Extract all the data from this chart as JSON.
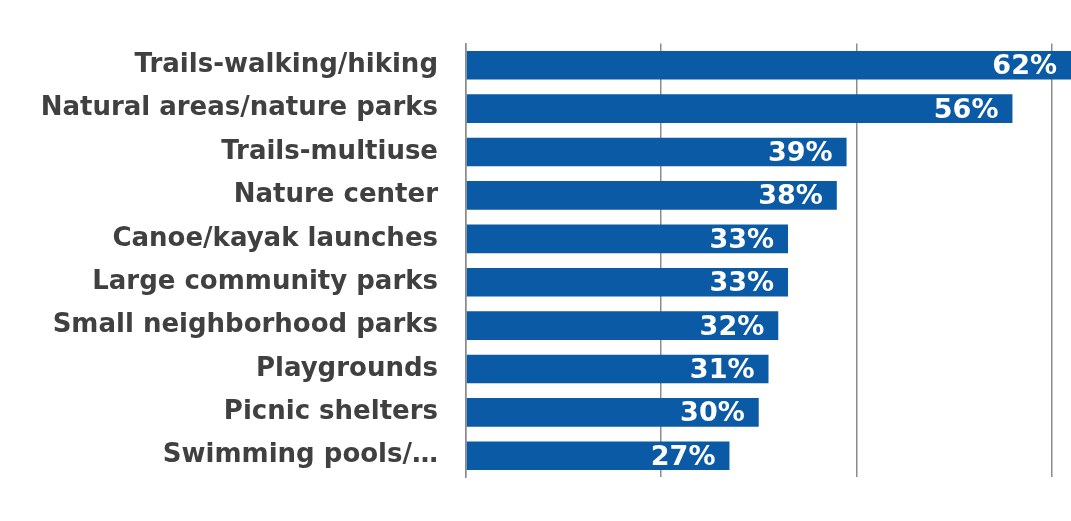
{
  "chart_data": {
    "type": "bar",
    "orientation": "horizontal",
    "categories": [
      "Trails-walking/hiking",
      "Natural areas/nature parks",
      "Trails-multiuse",
      "Nature center",
      "Canoe/kayak launches",
      "Large community parks",
      "Small neighborhood parks",
      "Playgrounds",
      "Picnic shelters",
      "Swimming pools/…"
    ],
    "values": [
      62,
      56,
      39,
      38,
      33,
      33,
      32,
      31,
      30,
      27
    ],
    "value_labels": [
      "62%",
      "56%",
      "39%",
      "38%",
      "33%",
      "33%",
      "32%",
      "31%",
      "30%",
      "27%"
    ],
    "color": "#0b5aa5",
    "xlim": [
      0,
      62
    ],
    "xticks": [
      {
        "value": 0,
        "label": null
      },
      {
        "value": 20,
        "label": null
      },
      {
        "value": 40,
        "label": null
      },
      {
        "value": 60,
        "label": null
      }
    ],
    "grid": "x",
    "tick_labels": "y",
    "legend": false
  }
}
